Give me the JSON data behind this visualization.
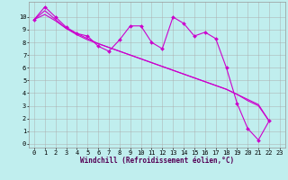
{
  "background_color": "#c0eeee",
  "grid_color": "#aaaaaa",
  "line_color": "#cc00cc",
  "marker": "D",
  "markersize": 2,
  "linewidth": 0.8,
  "xlabel": "Windchill (Refroidissement éolien,°C)",
  "xlabel_fontsize": 5.5,
  "tick_fontsize": 5.0,
  "xlim_min": -0.5,
  "xlim_max": 23.5,
  "ylim_min": -0.3,
  "ylim_max": 11.2,
  "xticks": [
    0,
    1,
    2,
    3,
    4,
    5,
    6,
    7,
    8,
    9,
    10,
    11,
    12,
    13,
    14,
    15,
    16,
    17,
    18,
    19,
    20,
    21,
    22,
    23
  ],
  "yticks": [
    0,
    1,
    2,
    3,
    4,
    5,
    6,
    7,
    8,
    9,
    10
  ],
  "series_zigzag": [
    9.8,
    10.8,
    10.0,
    9.2,
    8.7,
    8.5,
    7.7,
    7.3,
    8.2,
    9.3,
    9.3,
    8.0,
    7.5,
    10.0,
    9.5,
    8.5,
    8.8,
    8.3,
    6.0,
    3.2,
    1.2,
    0.3,
    1.8
  ],
  "series_line1": [
    9.8,
    10.5,
    9.8,
    9.1,
    8.6,
    8.2,
    7.9,
    7.6,
    7.3,
    7.0,
    6.7,
    6.4,
    6.1,
    5.8,
    5.5,
    5.2,
    4.9,
    4.6,
    4.3,
    3.9,
    3.5,
    3.1,
    1.8
  ],
  "series_line2": [
    9.8,
    10.2,
    9.7,
    9.1,
    8.7,
    8.3,
    7.9,
    7.6,
    7.3,
    7.0,
    6.7,
    6.4,
    6.1,
    5.8,
    5.5,
    5.2,
    4.9,
    4.6,
    4.3,
    3.9,
    3.4,
    3.0,
    1.8
  ]
}
